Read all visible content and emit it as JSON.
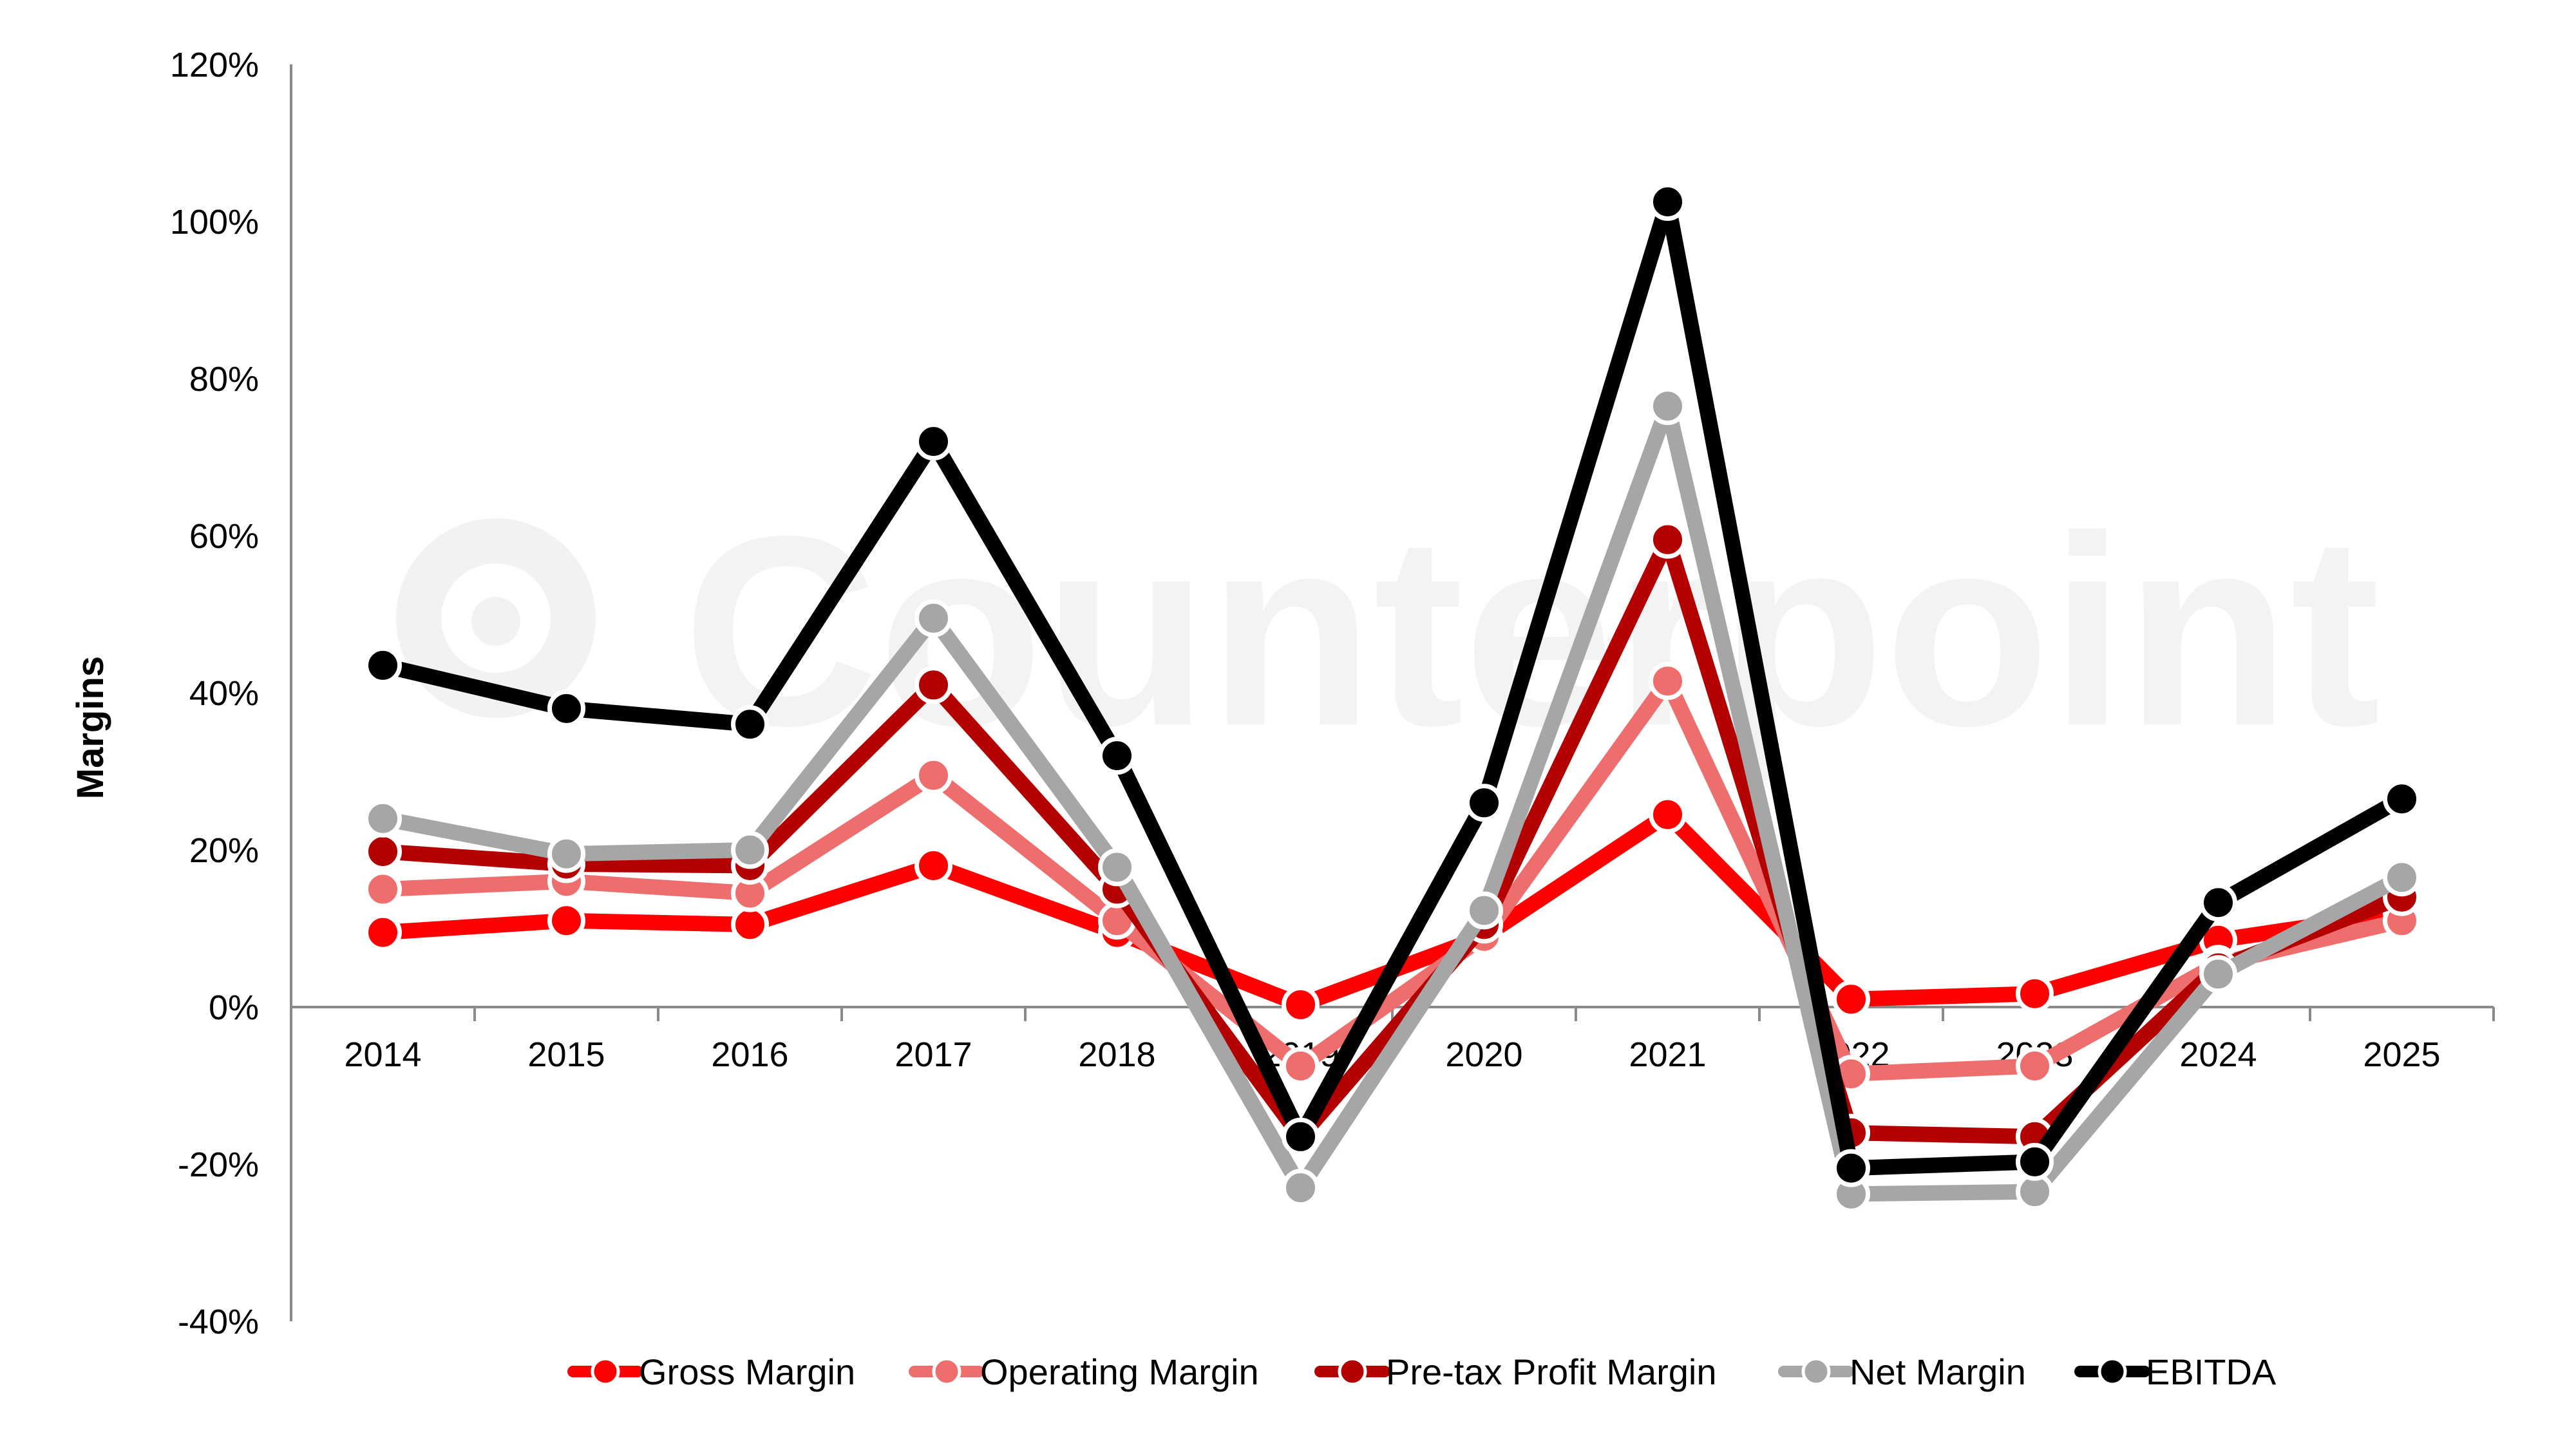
{
  "chart_data": {
    "type": "line",
    "categories": [
      "2014",
      "2015",
      "2016",
      "2017",
      "2018",
      "2019",
      "2020",
      "2021",
      "2022",
      "2023",
      "2024",
      "2025"
    ],
    "ylabel": "Margins",
    "ylim": [
      -40,
      120
    ],
    "yticks": [
      -40,
      -20,
      0,
      20,
      40,
      60,
      80,
      100,
      120
    ],
    "ytick_suffix": "%",
    "legend_position": "bottom",
    "grid": false,
    "series": [
      {
        "name": "Gross Margin",
        "color": "#ff0000",
        "values": [
          9.5,
          11,
          10.5,
          18,
          9.5,
          0.3,
          9,
          24.5,
          1,
          1.7,
          8.5,
          12
        ]
      },
      {
        "name": "Operating Margin",
        "color": "#ee6e6e",
        "values": [
          15,
          16,
          14.5,
          29.5,
          11,
          -7.5,
          9,
          41.5,
          -8.5,
          -7.5,
          5.5,
          11
        ]
      },
      {
        "name": "Pre-tax Profit Margin",
        "color": "#b30000",
        "values": [
          19.8,
          18.2,
          18,
          41,
          15,
          -16.5,
          10.5,
          59.5,
          -16,
          -16.5,
          5,
          14
        ]
      },
      {
        "name": "Net Margin",
        "color": "#a6a6a6",
        "values": [
          24,
          19.5,
          20,
          49.5,
          17.8,
          -23,
          12.3,
          76.5,
          -23.8,
          -23.5,
          4.2,
          16.5
        ]
      },
      {
        "name": "EBITDA",
        "color": "#000000",
        "values": [
          43.5,
          38,
          36,
          72,
          32,
          -16.5,
          26,
          102.5,
          -20.5,
          -19.7,
          13.3,
          26.5
        ]
      }
    ]
  },
  "watermark": {
    "text": "Counterpoint",
    "icon": "counterpoint-logo-icon"
  }
}
